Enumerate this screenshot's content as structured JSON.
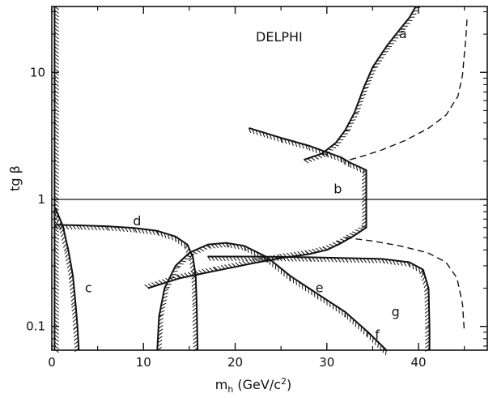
{
  "chart_data": {
    "type": "line",
    "title": "DELPHI",
    "xlabel": "m_h (GeV/c²)",
    "xlabel_main": "m",
    "xlabel_sub": "h",
    "xlabel_rest": " (GeV/c",
    "xlabel_sup": "2",
    "xlabel_close": ")",
    "ylabel": "tg β",
    "xlim": [
      0,
      47.5
    ],
    "ylim": [
      0.065,
      33
    ],
    "yscale": "log",
    "xticks": [
      0,
      10,
      20,
      30,
      40
    ],
    "yticks": [
      0.1,
      1,
      10
    ],
    "ytick_labels": [
      "0.1",
      "1",
      "10"
    ],
    "reference_line_y": 1,
    "series": [
      {
        "key": "a",
        "style": "solid",
        "hatched": true,
        "points": [
          [
            27.5,
            2.05
          ],
          [
            29.5,
            2.3
          ],
          [
            31,
            2.8
          ],
          [
            32,
            3.5
          ],
          [
            33,
            4.8
          ],
          [
            34,
            7.5
          ],
          [
            35,
            11
          ],
          [
            36.5,
            16
          ],
          [
            38,
            22
          ],
          [
            39,
            27
          ],
          [
            39.7,
            33
          ]
        ]
      },
      {
        "key": "a-dashed",
        "style": "dashed",
        "hatched": false,
        "points": [
          [
            32.5,
            2.05
          ],
          [
            34,
            2.2
          ],
          [
            36,
            2.45
          ],
          [
            38.5,
            2.9
          ],
          [
            41,
            3.6
          ],
          [
            43,
            4.6
          ],
          [
            44.3,
            6.5
          ],
          [
            44.8,
            9.5
          ],
          [
            45,
            14
          ],
          [
            45.2,
            20
          ],
          [
            45.3,
            27
          ]
        ]
      },
      {
        "key": "b",
        "style": "solid",
        "hatched": true,
        "points": [
          [
            21.5,
            3.65
          ],
          [
            25,
            3.05
          ],
          [
            28,
            2.65
          ],
          [
            30,
            2.35
          ],
          [
            31.5,
            2.15
          ],
          [
            32,
            2.05
          ],
          [
            32.5,
            1.95
          ],
          [
            34.3,
            1.7
          ],
          [
            34.3,
            0.6
          ],
          [
            33,
            0.52
          ],
          [
            31.5,
            0.45
          ],
          [
            30,
            0.4
          ],
          [
            28,
            0.37
          ],
          [
            25,
            0.345
          ],
          [
            22,
            0.315
          ],
          [
            18,
            0.275
          ],
          [
            14,
            0.24
          ],
          [
            10.5,
            0.2
          ]
        ]
      },
      {
        "key": "c",
        "style": "solid",
        "hatched": true,
        "points": [
          [
            0.4,
            0.85
          ],
          [
            1.2,
            0.62
          ],
          [
            1.8,
            0.4
          ],
          [
            2.3,
            0.25
          ],
          [
            2.6,
            0.15
          ],
          [
            2.8,
            0.1
          ],
          [
            2.95,
            0.065
          ]
        ]
      },
      {
        "key": "d",
        "style": "solid",
        "hatched": true,
        "points": [
          [
            0.3,
            0.63
          ],
          [
            3,
            0.625
          ],
          [
            6,
            0.615
          ],
          [
            9,
            0.595
          ],
          [
            11.5,
            0.565
          ],
          [
            13.5,
            0.51
          ],
          [
            14.8,
            0.44
          ],
          [
            15.4,
            0.35
          ],
          [
            15.7,
            0.25
          ],
          [
            15.8,
            0.15
          ],
          [
            15.9,
            0.065
          ]
        ]
      },
      {
        "key": "e",
        "style": "solid",
        "hatched": true,
        "points": [
          [
            11.5,
            0.065
          ],
          [
            11.7,
            0.12
          ],
          [
            12.3,
            0.2
          ],
          [
            13.5,
            0.3
          ],
          [
            15,
            0.38
          ],
          [
            17,
            0.44
          ],
          [
            19,
            0.455
          ],
          [
            21,
            0.43
          ],
          [
            23.5,
            0.35
          ],
          [
            26,
            0.25
          ],
          [
            29,
            0.18
          ],
          [
            32,
            0.13
          ],
          [
            34.5,
            0.09
          ],
          [
            36.5,
            0.065
          ]
        ]
      },
      {
        "key": "g",
        "style": "solid",
        "hatched": true,
        "points": [
          [
            17,
            0.355
          ],
          [
            22,
            0.355
          ],
          [
            28,
            0.35
          ],
          [
            32,
            0.345
          ],
          [
            36,
            0.34
          ],
          [
            39,
            0.32
          ],
          [
            40.5,
            0.28
          ],
          [
            41.1,
            0.2
          ],
          [
            41.2,
            0.1
          ],
          [
            41.2,
            0.065
          ]
        ]
      },
      {
        "key": "g-dashed",
        "style": "dashed",
        "hatched": false,
        "points": [
          [
            32,
            0.5
          ],
          [
            35,
            0.47
          ],
          [
            38,
            0.43
          ],
          [
            41,
            0.38
          ],
          [
            43,
            0.32
          ],
          [
            44.2,
            0.24
          ],
          [
            44.8,
            0.15
          ],
          [
            45,
            0.09
          ]
        ]
      },
      {
        "key": "x0-hatch",
        "style": "solid",
        "hatched": true,
        "points": [
          [
            0.3,
            33
          ],
          [
            0.3,
            0.065
          ]
        ]
      }
    ],
    "annotations": [
      {
        "text": "a",
        "x": 38.3,
        "y": 20
      },
      {
        "text": "b",
        "x": 31.2,
        "y": 1.2
      },
      {
        "text": "c",
        "x": 4.0,
        "y": 0.2
      },
      {
        "text": "d",
        "x": 9.3,
        "y": 0.67
      },
      {
        "text": "e",
        "x": 29.2,
        "y": 0.2
      },
      {
        "text": "f",
        "x": 35.5,
        "y": 0.085
      },
      {
        "text": "g",
        "x": 37.5,
        "y": 0.13
      }
    ]
  }
}
